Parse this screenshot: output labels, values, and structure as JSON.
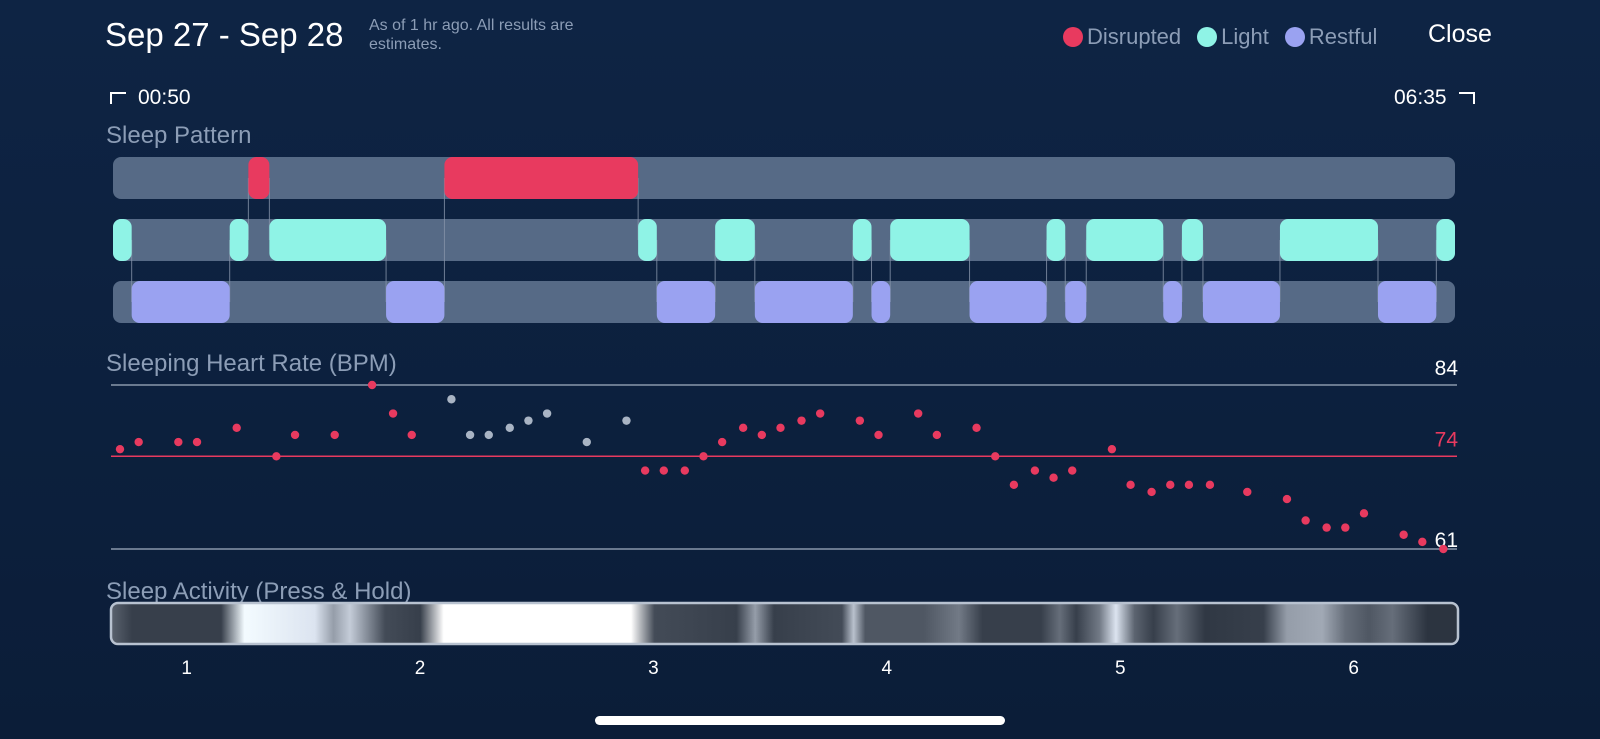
{
  "header": {
    "title": "Sep 27 - Sep 28",
    "note": "As of 1 hr ago. All results are estimates.",
    "close_label": "Close"
  },
  "legend": [
    {
      "label": "Disrupted",
      "color": "#e83a5f"
    },
    {
      "label": "Light",
      "color": "#8ff3e6"
    },
    {
      "label": "Restful",
      "color": "#9aa2f1"
    }
  ],
  "time_range": {
    "start": "00:50",
    "end": "06:35"
  },
  "sections": {
    "pattern": "Sleep Pattern",
    "heart_rate": "Sleeping Heart Rate (BPM)",
    "activity": "Sleep Activity (Press & Hold)"
  },
  "colors": {
    "disrupted": "#e83a5f",
    "light": "#8ff3e6",
    "restful": "#9aa2f1",
    "track": "#566a86",
    "avg_line": "#e83a5f",
    "awake_dot": "#a9b4c4"
  },
  "chart_data": [
    {
      "type": "timeline",
      "name": "Sleep Pattern",
      "x_unit": "hours since sleep start",
      "x_range": [
        0.83,
        6.58
      ],
      "stages": [
        {
          "stage": "light",
          "start": 0.83,
          "end": 0.91
        },
        {
          "stage": "restful",
          "start": 0.91,
          "end": 1.33
        },
        {
          "stage": "light",
          "start": 1.33,
          "end": 1.41
        },
        {
          "stage": "disrupted",
          "start": 1.41,
          "end": 1.5
        },
        {
          "stage": "light",
          "start": 1.5,
          "end": 2.0
        },
        {
          "stage": "restful",
          "start": 2.0,
          "end": 2.25
        },
        {
          "stage": "disrupted",
          "start": 2.25,
          "end": 3.08
        },
        {
          "stage": "light",
          "start": 3.08,
          "end": 3.16
        },
        {
          "stage": "restful",
          "start": 3.16,
          "end": 3.41
        },
        {
          "stage": "light",
          "start": 3.41,
          "end": 3.58
        },
        {
          "stage": "restful",
          "start": 3.58,
          "end": 4.0
        },
        {
          "stage": "light",
          "start": 4.0,
          "end": 4.08
        },
        {
          "stage": "restful",
          "start": 4.08,
          "end": 4.16
        },
        {
          "stage": "light",
          "start": 4.16,
          "end": 4.5
        },
        {
          "stage": "restful",
          "start": 4.5,
          "end": 4.83
        },
        {
          "stage": "light",
          "start": 4.83,
          "end": 4.91
        },
        {
          "stage": "restful",
          "start": 4.91,
          "end": 5.0
        },
        {
          "stage": "light",
          "start": 5.0,
          "end": 5.33
        },
        {
          "stage": "restful",
          "start": 5.33,
          "end": 5.41
        },
        {
          "stage": "light",
          "start": 5.41,
          "end": 5.5
        },
        {
          "stage": "restful",
          "start": 5.5,
          "end": 5.83
        },
        {
          "stage": "light",
          "start": 5.83,
          "end": 6.25
        },
        {
          "stage": "restful",
          "start": 6.25,
          "end": 6.5
        },
        {
          "stage": "light",
          "start": 6.5,
          "end": 6.58
        }
      ]
    },
    {
      "type": "scatter",
      "name": "Sleeping Heart Rate (BPM)",
      "y_range": [
        61,
        84
      ],
      "average": 74,
      "y_labels": [
        "84",
        "74",
        "61"
      ],
      "points": [
        {
          "x": 0.83,
          "y": 75
        },
        {
          "x": 0.91,
          "y": 76
        },
        {
          "x": 1.08,
          "y": 76
        },
        {
          "x": 1.16,
          "y": 76
        },
        {
          "x": 1.33,
          "y": 78
        },
        {
          "x": 1.5,
          "y": 74
        },
        {
          "x": 1.58,
          "y": 77
        },
        {
          "x": 1.75,
          "y": 77
        },
        {
          "x": 1.91,
          "y": 84
        },
        {
          "x": 2.0,
          "y": 80
        },
        {
          "x": 2.08,
          "y": 77
        },
        {
          "x": 2.25,
          "y": 82,
          "awake": true
        },
        {
          "x": 2.33,
          "y": 77,
          "awake": true
        },
        {
          "x": 2.41,
          "y": 77,
          "awake": true
        },
        {
          "x": 2.5,
          "y": 78,
          "awake": true
        },
        {
          "x": 2.58,
          "y": 79,
          "awake": true
        },
        {
          "x": 2.66,
          "y": 80,
          "awake": true
        },
        {
          "x": 2.83,
          "y": 76,
          "awake": true
        },
        {
          "x": 3.0,
          "y": 79,
          "awake": true
        },
        {
          "x": 3.08,
          "y": 72
        },
        {
          "x": 3.16,
          "y": 72
        },
        {
          "x": 3.25,
          "y": 72
        },
        {
          "x": 3.33,
          "y": 74
        },
        {
          "x": 3.41,
          "y": 76
        },
        {
          "x": 3.5,
          "y": 78
        },
        {
          "x": 3.58,
          "y": 77
        },
        {
          "x": 3.66,
          "y": 78
        },
        {
          "x": 3.75,
          "y": 79
        },
        {
          "x": 3.83,
          "y": 80
        },
        {
          "x": 4.0,
          "y": 79
        },
        {
          "x": 4.08,
          "y": 77
        },
        {
          "x": 4.25,
          "y": 80
        },
        {
          "x": 4.33,
          "y": 77
        },
        {
          "x": 4.5,
          "y": 78
        },
        {
          "x": 4.58,
          "y": 74
        },
        {
          "x": 4.66,
          "y": 70
        },
        {
          "x": 4.75,
          "y": 72
        },
        {
          "x": 4.83,
          "y": 71
        },
        {
          "x": 4.91,
          "y": 72
        },
        {
          "x": 5.08,
          "y": 75
        },
        {
          "x": 5.16,
          "y": 70
        },
        {
          "x": 5.25,
          "y": 69
        },
        {
          "x": 5.33,
          "y": 70
        },
        {
          "x": 5.41,
          "y": 70
        },
        {
          "x": 5.5,
          "y": 70
        },
        {
          "x": 5.66,
          "y": 69
        },
        {
          "x": 5.83,
          "y": 68
        },
        {
          "x": 5.91,
          "y": 65
        },
        {
          "x": 6.0,
          "y": 64
        },
        {
          "x": 6.08,
          "y": 64
        },
        {
          "x": 6.16,
          "y": 66
        },
        {
          "x": 6.33,
          "y": 63
        },
        {
          "x": 6.41,
          "y": 62
        },
        {
          "x": 6.5,
          "y": 61
        }
      ]
    },
    {
      "type": "heatmap",
      "name": "Sleep Activity (Press & Hold)",
      "x_ticks": [
        1,
        2,
        3,
        4,
        5,
        6
      ],
      "x_tick_labels": [
        "1",
        "2",
        "3",
        "4",
        "5",
        "6"
      ],
      "x_range": [
        0.83,
        6.58
      ],
      "intensity_stops": [
        [
          0.83,
          0.3
        ],
        [
          0.92,
          0.15
        ],
        [
          1.3,
          0.15
        ],
        [
          1.4,
          0.95
        ],
        [
          1.7,
          0.85
        ],
        [
          1.78,
          0.55
        ],
        [
          1.85,
          0.75
        ],
        [
          2.0,
          0.2
        ],
        [
          2.15,
          0.15
        ],
        [
          2.25,
          1.0
        ],
        [
          3.05,
          1.0
        ],
        [
          3.15,
          0.2
        ],
        [
          3.5,
          0.15
        ],
        [
          3.58,
          0.55
        ],
        [
          3.66,
          0.15
        ],
        [
          3.95,
          0.2
        ],
        [
          4.0,
          0.7
        ],
        [
          4.05,
          0.25
        ],
        [
          4.3,
          0.25
        ],
        [
          4.45,
          0.4
        ],
        [
          4.55,
          0.15
        ],
        [
          4.8,
          0.15
        ],
        [
          4.88,
          0.35
        ],
        [
          4.95,
          0.15
        ],
        [
          5.05,
          0.4
        ],
        [
          5.12,
          0.85
        ],
        [
          5.2,
          0.3
        ],
        [
          5.28,
          0.15
        ],
        [
          5.38,
          0.35
        ],
        [
          5.5,
          0.12
        ],
        [
          5.75,
          0.15
        ],
        [
          5.85,
          0.55
        ],
        [
          6.0,
          0.6
        ],
        [
          6.1,
          0.35
        ],
        [
          6.2,
          0.25
        ],
        [
          6.3,
          0.35
        ],
        [
          6.45,
          0.1
        ],
        [
          6.58,
          0.1
        ]
      ]
    }
  ]
}
